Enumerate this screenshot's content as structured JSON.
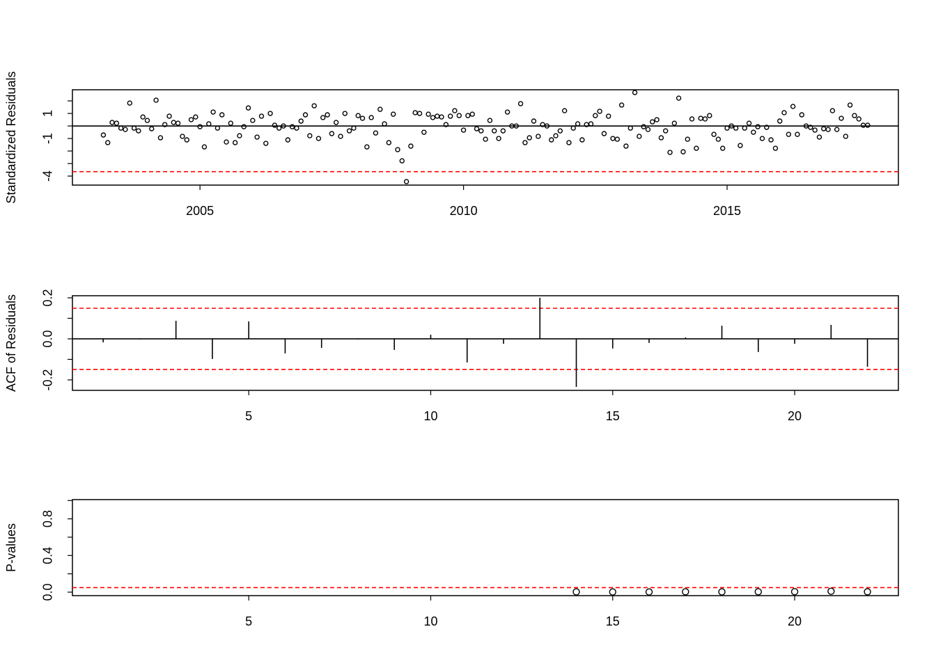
{
  "chart_data": [
    {
      "type": "scatter",
      "y_label": "Standardized Residuals",
      "color": "#000000",
      "marker_size": 3,
      "x": [
        2003.167,
        2003.25,
        2003.333,
        2003.417,
        2003.5,
        2003.583,
        2003.667,
        2003.75,
        2003.833,
        2003.917,
        2004,
        2004.083,
        2004.167,
        2004.25,
        2004.333,
        2004.417,
        2004.5,
        2004.583,
        2004.667,
        2004.75,
        2004.833,
        2004.917,
        2005,
        2005.083,
        2005.167,
        2005.25,
        2005.333,
        2005.417,
        2005.5,
        2005.583,
        2005.667,
        2005.75,
        2005.833,
        2005.917,
        2006,
        2006.083,
        2006.167,
        2006.25,
        2006.333,
        2006.417,
        2006.5,
        2006.583,
        2006.667,
        2006.75,
        2006.833,
        2006.917,
        2007,
        2007.083,
        2007.167,
        2007.25,
        2007.333,
        2007.417,
        2007.5,
        2007.583,
        2007.667,
        2007.75,
        2007.833,
        2007.917,
        2008,
        2008.083,
        2008.167,
        2008.25,
        2008.333,
        2008.417,
        2008.5,
        2008.583,
        2008.667,
        2008.75,
        2008.833,
        2008.917,
        2009,
        2009.083,
        2009.167,
        2009.25,
        2009.333,
        2009.417,
        2009.5,
        2009.583,
        2009.667,
        2009.75,
        2009.833,
        2009.917,
        2010,
        2010.083,
        2010.167,
        2010.25,
        2010.333,
        2010.417,
        2010.5,
        2010.583,
        2010.667,
        2010.75,
        2010.833,
        2010.917,
        2011,
        2011.083,
        2011.167,
        2011.25,
        2011.333,
        2011.417,
        2011.5,
        2011.583,
        2011.667,
        2011.75,
        2011.833,
        2011.917,
        2012,
        2012.083,
        2012.167,
        2012.25,
        2012.333,
        2012.417,
        2012.5,
        2012.583,
        2012.667,
        2012.75,
        2012.833,
        2012.917,
        2013,
        2013.083,
        2013.167,
        2013.25,
        2013.333,
        2013.417,
        2013.5,
        2013.583,
        2013.667,
        2013.75,
        2013.833,
        2013.917,
        2014,
        2014.083,
        2014.167,
        2014.25,
        2014.333,
        2014.417,
        2014.5,
        2014.583,
        2014.667,
        2014.75,
        2014.833,
        2014.917,
        2015,
        2015.083,
        2015.167,
        2015.25,
        2015.333,
        2015.417,
        2015.5,
        2015.583,
        2015.667,
        2015.75,
        2015.833,
        2015.917,
        2016,
        2016.083,
        2016.167,
        2016.25,
        2016.333,
        2016.417,
        2016.5,
        2016.583,
        2016.667,
        2016.75,
        2016.833,
        2016.917,
        2017,
        2017.083,
        2017.167,
        2017.25,
        2017.333,
        2017.417,
        2017.5,
        2017.583,
        2017.667
      ],
      "values": [
        -0.72,
        -1.33,
        0.28,
        0.22,
        -0.17,
        -0.28,
        1.83,
        -0.17,
        -0.39,
        0.72,
        0.44,
        -0.22,
        2.06,
        -0.94,
        0.11,
        0.78,
        0.28,
        0.22,
        -0.83,
        -1.11,
        0.5,
        0.72,
        -0.06,
        -1.67,
        0.17,
        1.11,
        -0.17,
        0.89,
        -1.28,
        0.22,
        -1.33,
        -0.78,
        -0.06,
        1.44,
        0.44,
        -0.89,
        0.78,
        -1.39,
        1.0,
        0.06,
        -0.17,
        0,
        -1.11,
        -0.06,
        -0.17,
        0.39,
        0.89,
        -0.78,
        1.61,
        -1.0,
        0.67,
        0.89,
        -0.61,
        0.28,
        -0.83,
        1.0,
        -0.39,
        -0.17,
        0.83,
        0.61,
        -1.67,
        0.67,
        -0.56,
        1.33,
        0.17,
        -1.33,
        0.94,
        -1.89,
        -2.78,
        -4.44,
        -1.61,
        1.06,
        1.0,
        -0.5,
        0.94,
        0.67,
        0.78,
        0.72,
        0.11,
        0.78,
        1.22,
        0.83,
        -0.33,
        0.83,
        0.94,
        -0.22,
        -0.39,
        -1.06,
        0.44,
        -0.39,
        -1.0,
        -0.39,
        1.11,
        0,
        0,
        1.78,
        -1.33,
        -0.94,
        0.39,
        -0.83,
        0.11,
        0,
        -1.11,
        -0.78,
        -0.39,
        1.22,
        -1.33,
        -0.17,
        0.17,
        -1.11,
        0.11,
        0.17,
        0.83,
        1.17,
        -0.61,
        0.78,
        -1.0,
        -1.06,
        1.67,
        -1.61,
        -0.17,
        2.67,
        -0.83,
        -0.06,
        -0.28,
        0.33,
        0.5,
        -0.94,
        -0.39,
        -2.11,
        0.22,
        2.22,
        -2.06,
        -1.06,
        0.56,
        -1.78,
        0.61,
        0.56,
        0.83,
        -0.67,
        -1.06,
        -1.78,
        -0.17,
        0,
        -0.17,
        -1.56,
        -0.17,
        0.22,
        -0.5,
        -0.06,
        -1.0,
        -0.11,
        -1.11,
        -1.78,
        0.39,
        1.06,
        -0.67,
        1.56,
        -0.67,
        0.89,
        0,
        -0.11,
        -0.33,
        -0.89,
        -0.22,
        -0.28,
        1.22,
        -0.28,
        0.61,
        -0.83,
        1.67,
        0.83,
        0.56,
        0.06,
        0.06
      ],
      "xlim": [
        2002.58,
        2018.25
      ],
      "ylim": [
        -4.72,
        2.89
      ],
      "xticks": [
        2005,
        2010,
        2015
      ],
      "yticks": [
        {
          "value": 2,
          "label": null
        },
        1,
        {
          "value": 0,
          "label": null
        },
        -1,
        {
          "value": -2,
          "label": null
        },
        {
          "value": -3,
          "label": null
        },
        -4
      ],
      "hlines": [
        {
          "value": 0,
          "color": "#000000",
          "dashed": false
        },
        {
          "value": -3.65,
          "color": "#ff0000",
          "dashed": true
        }
      ]
    },
    {
      "type": "spike",
      "y_label": "ACF of Residuals",
      "color": "#000000",
      "x": [
        1,
        2,
        3,
        4,
        5,
        6,
        7,
        8,
        9,
        10,
        11,
        12,
        13,
        14,
        15,
        16,
        17,
        18,
        19,
        20,
        21,
        22
      ],
      "values": [
        -0.017,
        -0.003,
        0.088,
        -0.098,
        0.085,
        -0.071,
        -0.044,
        -0.003,
        -0.054,
        0.02,
        -0.115,
        -0.024,
        0.2,
        -0.234,
        -0.047,
        -0.02,
        0.007,
        0.064,
        -0.064,
        -0.024,
        0.068,
        -0.136
      ],
      "xlim": [
        0.155,
        22.85
      ],
      "ylim": [
        -0.251,
        0.21
      ],
      "xticks": [
        5,
        10,
        15,
        20
      ],
      "yticks": [
        -0.2,
        {
          "value": -0.1,
          "label": null
        },
        {
          "value": 0,
          "label": "0.0"
        },
        {
          "value": 0.1,
          "label": null
        },
        0.2
      ],
      "hlines": [
        {
          "value": 0,
          "color": "#000000",
          "dashed": false
        },
        {
          "value": 0.149,
          "color": "#ff0000",
          "dashed": true
        },
        {
          "value": -0.149,
          "color": "#ff0000",
          "dashed": true
        }
      ]
    },
    {
      "type": "scatter",
      "y_label": "P-values",
      "color": "#000000",
      "marker_size": 4.5,
      "x": [
        14,
        15,
        16,
        17,
        18,
        19,
        20,
        21,
        22
      ],
      "values": [
        0.003,
        0.002,
        0.002,
        0.004,
        0.003,
        0.004,
        0.005,
        0.01,
        0.004
      ],
      "xlim": [
        0.155,
        22.85
      ],
      "ylim": [
        -0.038,
        1.01
      ],
      "xticks": [
        5,
        10,
        15,
        20
      ],
      "yticks": [
        {
          "value": 0,
          "label": "0.0"
        },
        {
          "value": 0.2,
          "label": null
        },
        0.4,
        {
          "value": 0.6,
          "label": null
        },
        0.8,
        {
          "value": 1,
          "label": null
        }
      ],
      "hlines": [
        {
          "value": 0.05,
          "color": "#ff0000",
          "dashed": true
        }
      ]
    }
  ]
}
